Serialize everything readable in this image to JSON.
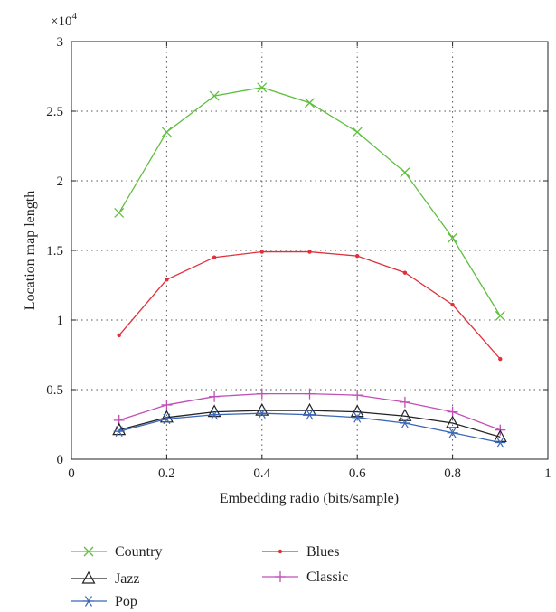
{
  "chart_data": {
    "type": "line",
    "xlabel": "Embedding radio (bits/sample)",
    "ylabel": "Location map length",
    "y_multiplier": "×10",
    "y_exponent": "4",
    "xlim": [
      0,
      1
    ],
    "ylim": [
      0,
      3
    ],
    "x_ticks": [
      0,
      0.2,
      0.4,
      0.6,
      0.8,
      1
    ],
    "x_tick_labels": [
      "0",
      "0.2",
      "0.4",
      "0.6",
      "0.8",
      "1"
    ],
    "y_ticks": [
      0,
      0.5,
      1,
      1.5,
      2,
      2.5,
      3
    ],
    "y_tick_labels": [
      "0",
      "0.5",
      "1",
      "1.5",
      "2",
      "2.5",
      "3"
    ],
    "grid": true,
    "legend_position": "below",
    "x": [
      0.1,
      0.2,
      0.3,
      0.4,
      0.5,
      0.6,
      0.7,
      0.8,
      0.9
    ],
    "series": [
      {
        "name": "Country",
        "color": "#5fbf3f",
        "marker": "x",
        "values": [
          1.77,
          2.35,
          2.61,
          2.67,
          2.56,
          2.35,
          2.06,
          1.59,
          1.03
        ]
      },
      {
        "name": "Blues",
        "color": "#e0303a",
        "marker": "dot",
        "values": [
          0.89,
          1.29,
          1.45,
          1.49,
          1.49,
          1.46,
          1.34,
          1.11,
          0.72
        ]
      },
      {
        "name": "Classic",
        "color": "#c04fb8",
        "marker": "plus",
        "values": [
          0.28,
          0.39,
          0.45,
          0.47,
          0.47,
          0.46,
          0.41,
          0.34,
          0.21
        ]
      },
      {
        "name": "Jazz",
        "color": "#222222",
        "marker": "triangle",
        "values": [
          0.21,
          0.3,
          0.34,
          0.35,
          0.35,
          0.34,
          0.31,
          0.26,
          0.16
        ]
      },
      {
        "name": "Pop",
        "color": "#3a66b7",
        "marker": "asterisk",
        "values": [
          0.2,
          0.29,
          0.32,
          0.33,
          0.32,
          0.3,
          0.26,
          0.19,
          0.12
        ]
      }
    ],
    "legend": [
      {
        "series": "Country"
      },
      {
        "series": "Jazz"
      },
      {
        "series": "Pop"
      },
      {
        "series": "Blues"
      },
      {
        "series": "Classic"
      }
    ]
  }
}
